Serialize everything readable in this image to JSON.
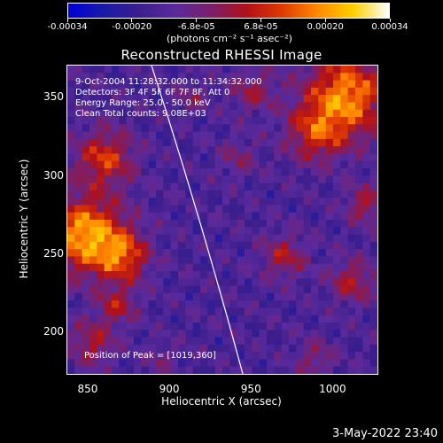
{
  "colorbar": {
    "ticks": [
      "-0.00034",
      "-0.00020",
      "-6.8e-05",
      "6.8e-05",
      "0.00020",
      "0.00034"
    ],
    "unit_label": "(photons cm⁻² s⁻¹ asec⁻²)",
    "colors": [
      "#0000d8",
      "#1a1aa8",
      "#3c1e8c",
      "#5a2a9c",
      "#7a206a",
      "#b0101a",
      "#e03a00",
      "#ff8a00",
      "#ffd000",
      "#ffffff"
    ]
  },
  "image": {
    "title": "Reconstructed RHESSI Image",
    "annotations": {
      "time": "9-Oct-2004 11:28:32.000 to 11:34:32.000",
      "detectors": "Detectors: 3F 4F 5F 6F 7F 8F, Att 0",
      "energy": "Energy Range: 25.0 - 50.0 keV",
      "clean": "Clean     Total counts: 9.08E+03",
      "peak": "Position of Peak = [1019,360]"
    },
    "x_axis": {
      "label": "Heliocentric X (arcsec)",
      "ticks": [
        "850",
        "900",
        "950",
        "1000"
      ],
      "range": [
        837,
        1028
      ]
    },
    "y_axis": {
      "label": "Heliocentric Y (arcsec)",
      "ticks": [
        "200",
        "250",
        "300",
        "350"
      ],
      "range": [
        173,
        371
      ]
    }
  },
  "datestamp": "3-May-2022 23:40"
}
